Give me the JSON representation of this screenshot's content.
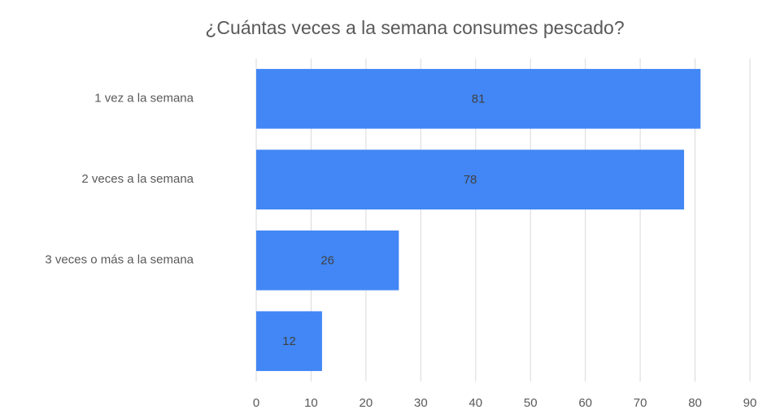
{
  "chart_data": {
    "type": "hbar",
    "title": "¿Cuántas veces a la semana consumes pescado?",
    "categories": [
      "1 vez a la semana",
      "2 veces a la semana",
      "3 veces o más a la semana",
      null
    ],
    "values": [
      81,
      78,
      26,
      12
    ],
    "color": "#4287f5",
    "xlim": [
      0,
      90
    ],
    "xticks": [
      0,
      10,
      20,
      30,
      40,
      50,
      60,
      70,
      80,
      90
    ],
    "grid": true
  }
}
